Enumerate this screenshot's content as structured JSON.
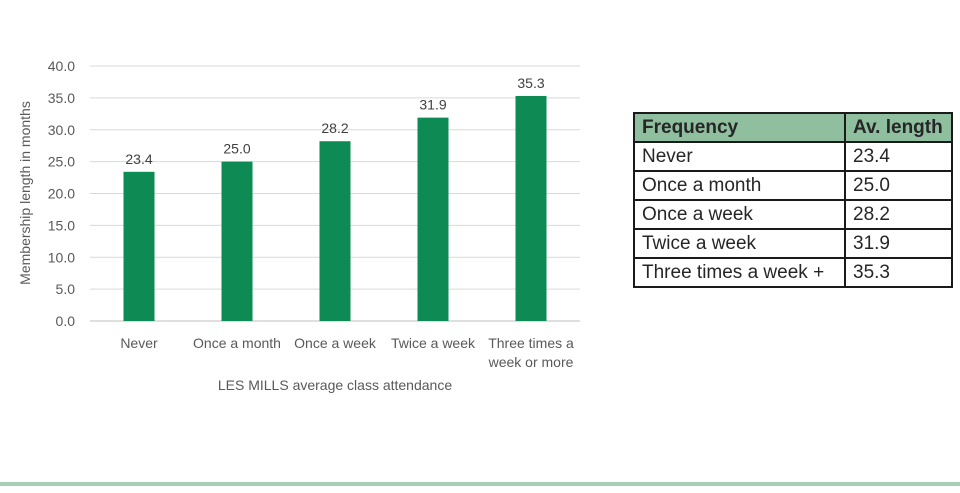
{
  "chart_data": {
    "type": "bar",
    "categories": [
      "Never",
      "Once a month",
      "Once a week",
      "Twice a week",
      "Three times a week or more"
    ],
    "values": [
      23.4,
      25.0,
      28.2,
      31.9,
      35.3
    ],
    "value_labels": [
      "23.4",
      "25.0",
      "28.2",
      "31.9",
      "35.3"
    ],
    "xlabel": "LES MILLS average class attendance",
    "ylabel": "Membership length in months",
    "ylim": [
      0,
      40
    ],
    "y_ticks": [
      "0.0",
      "5.0",
      "10.0",
      "15.0",
      "20.0",
      "25.0",
      "30.0",
      "35.0",
      "40.0"
    ],
    "grid": true,
    "bar_color": "#0e8a55"
  },
  "table": {
    "headers": [
      "Frequency",
      "Av. length"
    ],
    "rows": [
      [
        "Never",
        "23.4"
      ],
      [
        "Once a month",
        "25.0"
      ],
      [
        "Once a week",
        "28.2"
      ],
      [
        "Twice a week",
        "31.9"
      ],
      [
        "Three times a week +",
        "35.3"
      ]
    ],
    "header_color": "#8fbf9f"
  },
  "footer_rule_color": "#a8ceb5"
}
